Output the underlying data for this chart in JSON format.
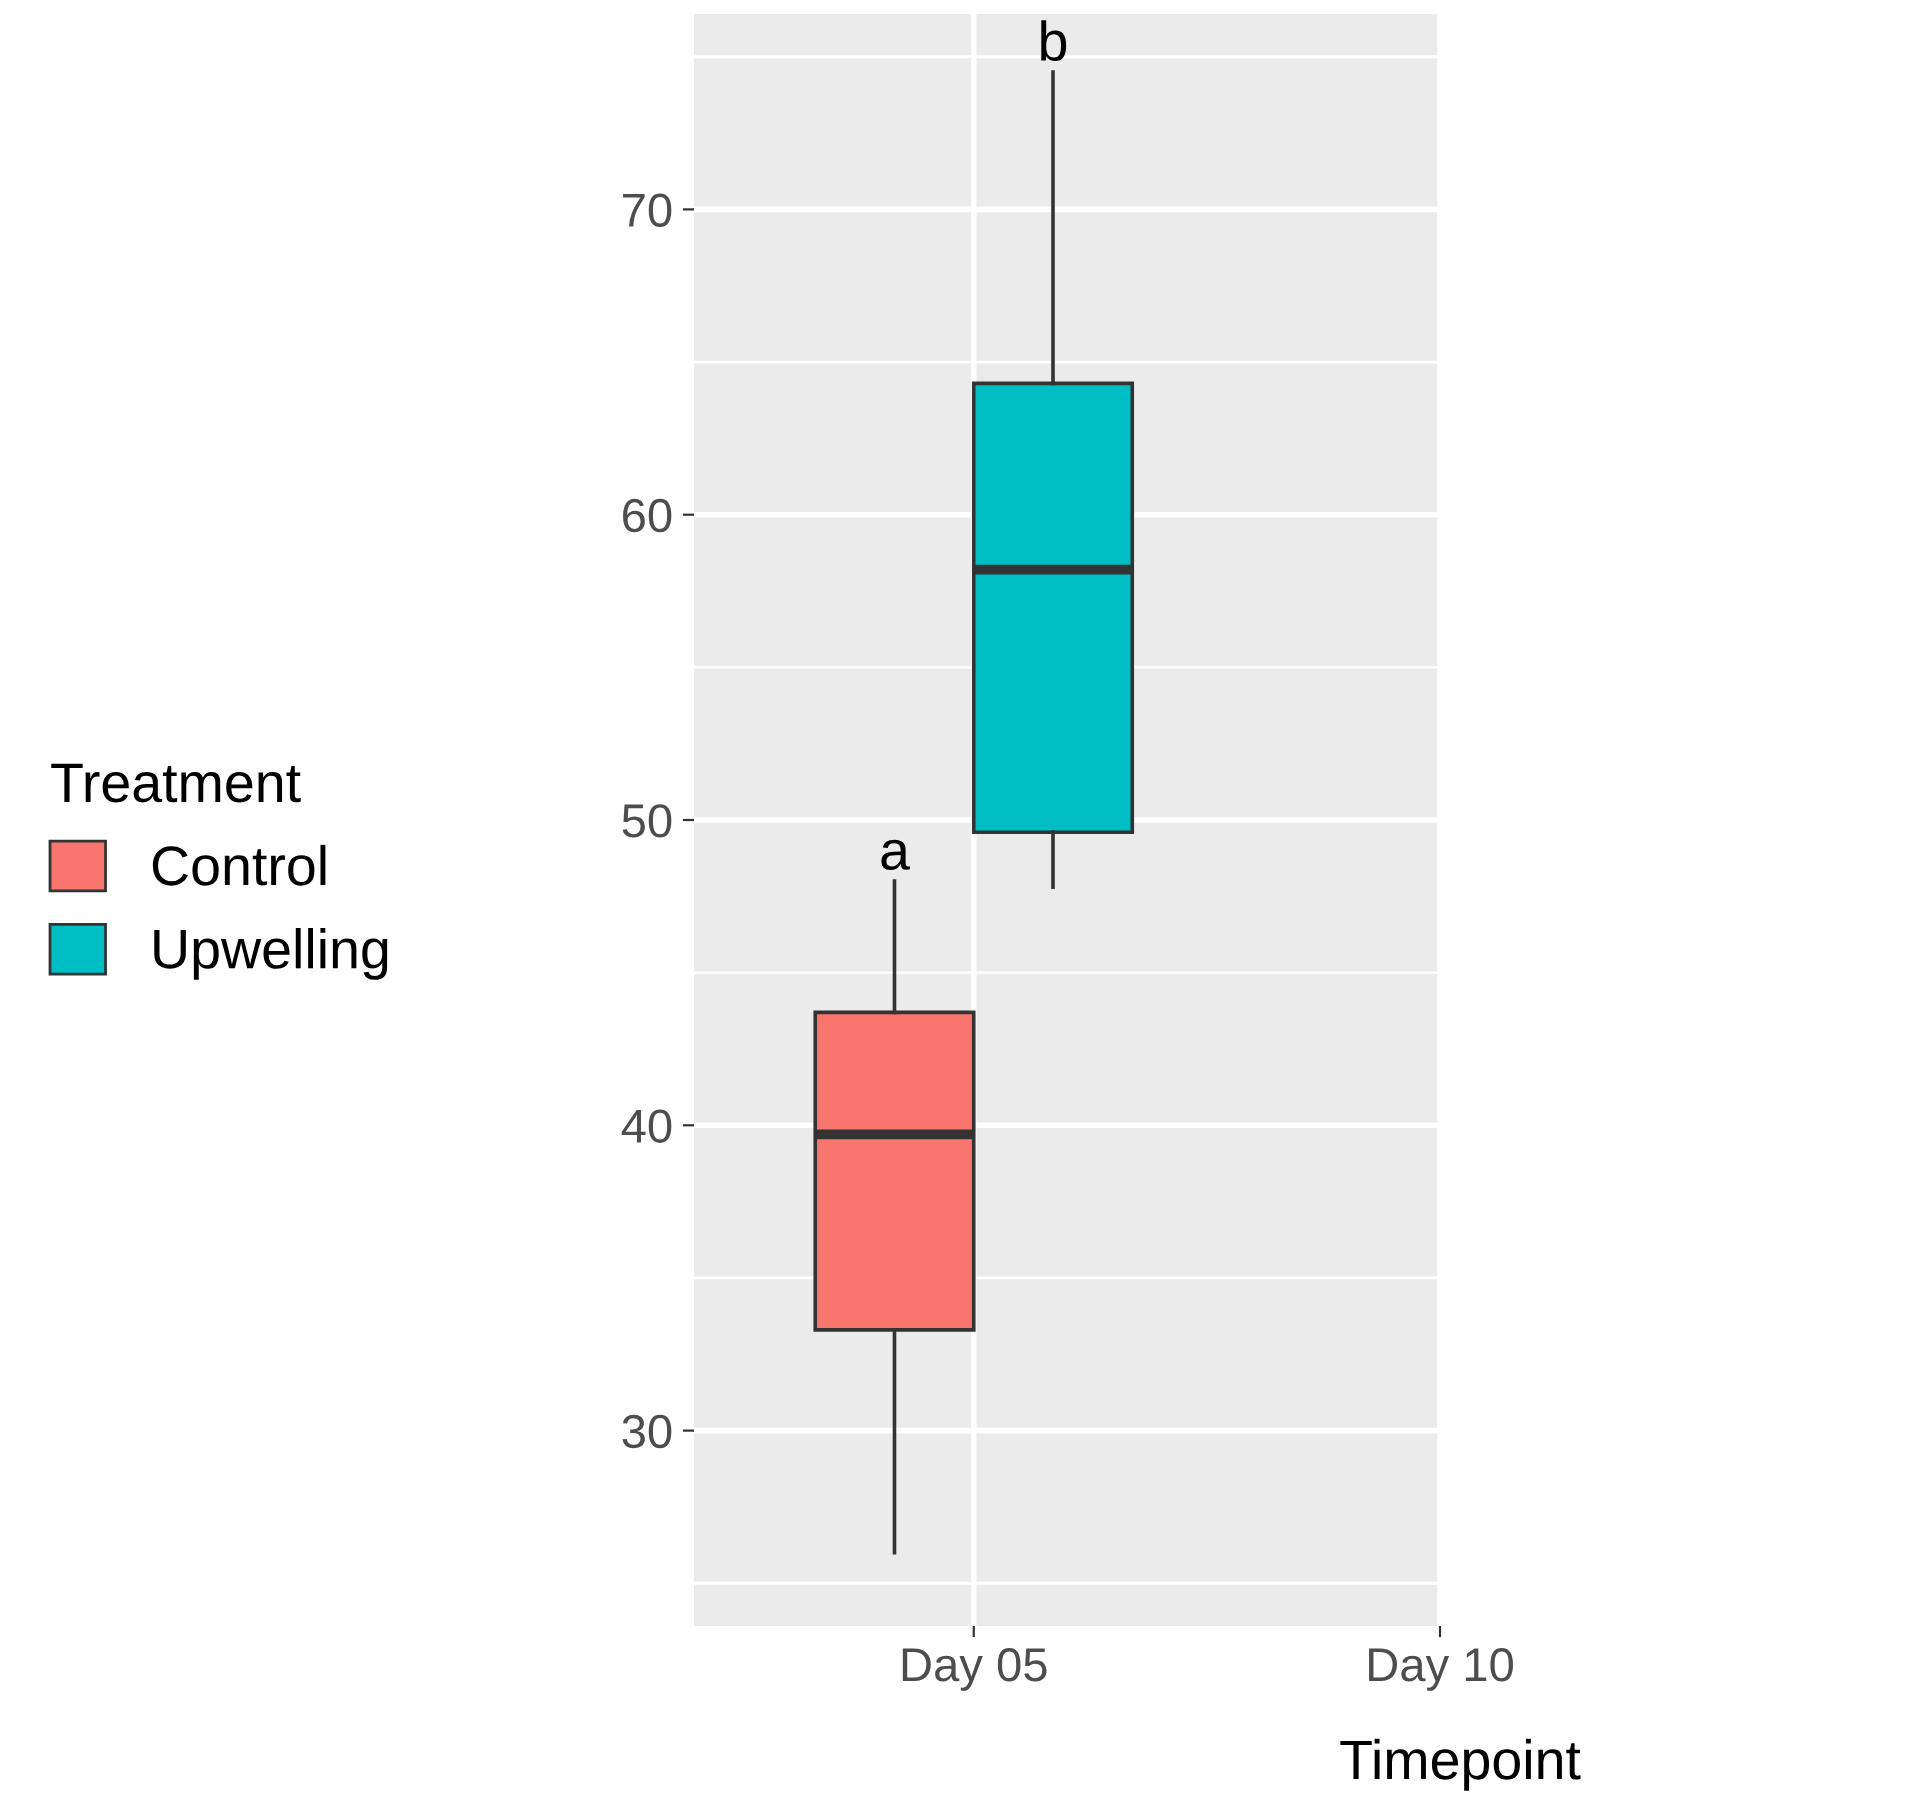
{
  "chart_data": {
    "type": "box",
    "xlabel": "Timepoint",
    "legend_title": "Treatment",
    "legend": "left",
    "grid": true,
    "categories": [
      "Day 05",
      "Day 10"
    ],
    "series": [
      {
        "name": "Control",
        "color": "#f8766d",
        "boxes": [
          {
            "low": 26.0,
            "q1": 33.3,
            "median": 39.7,
            "q3": 43.7,
            "high": 48.0
          },
          null
        ]
      },
      {
        "name": "Upwelling",
        "color": "#00bfc4",
        "boxes": [
          {
            "low": 47.8,
            "q1": 49.6,
            "median": 58.2,
            "q3": 64.3,
            "high": 74.5
          },
          null
        ]
      }
    ],
    "ylim": [
      23.6,
      76.4
    ],
    "yticks": [
      30,
      40,
      50,
      60,
      70
    ],
    "annotations": [
      "a",
      "b"
    ]
  }
}
